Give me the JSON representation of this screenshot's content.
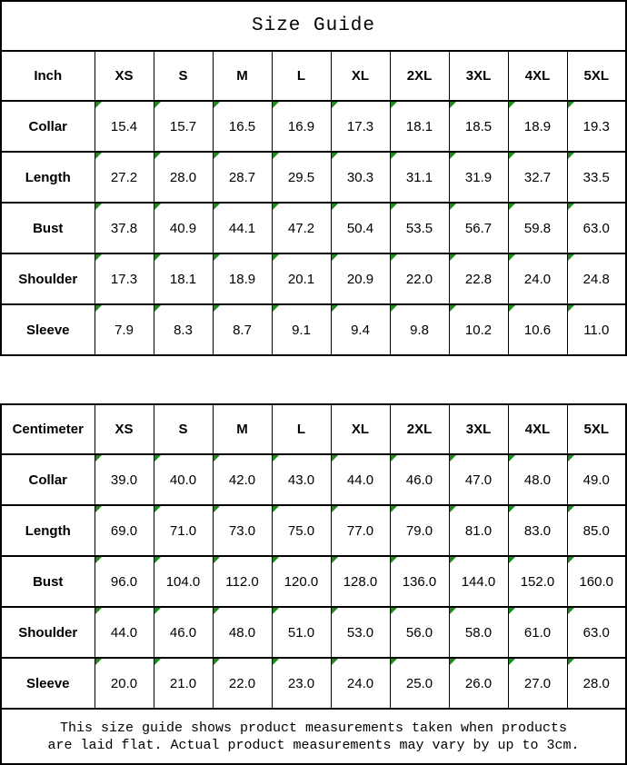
{
  "title": "Size Guide",
  "colors": {
    "flag_green": "#1f8b1f",
    "border": "#000000",
    "background": "#ffffff"
  },
  "inch_table": {
    "unit_label": "Inch",
    "sizes": [
      "XS",
      "S",
      "M",
      "L",
      "XL",
      "2XL",
      "3XL",
      "4XL",
      "5XL"
    ],
    "rows": [
      {
        "label": "Collar",
        "values": [
          "15.4",
          "15.7",
          "16.5",
          "16.9",
          "17.3",
          "18.1",
          "18.5",
          "18.9",
          "19.3"
        ]
      },
      {
        "label": "Length",
        "values": [
          "27.2",
          "28.0",
          "28.7",
          "29.5",
          "30.3",
          "31.1",
          "31.9",
          "32.7",
          "33.5"
        ]
      },
      {
        "label": "Bust",
        "values": [
          "37.8",
          "40.9",
          "44.1",
          "47.2",
          "50.4",
          "53.5",
          "56.7",
          "59.8",
          "63.0"
        ]
      },
      {
        "label": "Shoulder",
        "values": [
          "17.3",
          "18.1",
          "18.9",
          "20.1",
          "20.9",
          "22.0",
          "22.8",
          "24.0",
          "24.8"
        ]
      },
      {
        "label": "Sleeve",
        "values": [
          "7.9",
          "8.3",
          "8.7",
          "9.1",
          "9.4",
          "9.8",
          "10.2",
          "10.6",
          "11.0"
        ]
      }
    ]
  },
  "cm_table": {
    "unit_label": "Centimeter",
    "sizes": [
      "XS",
      "S",
      "M",
      "L",
      "XL",
      "2XL",
      "3XL",
      "4XL",
      "5XL"
    ],
    "rows": [
      {
        "label": "Collar",
        "values": [
          "39.0",
          "40.0",
          "42.0",
          "43.0",
          "44.0",
          "46.0",
          "47.0",
          "48.0",
          "49.0"
        ]
      },
      {
        "label": "Length",
        "values": [
          "69.0",
          "71.0",
          "73.0",
          "75.0",
          "77.0",
          "79.0",
          "81.0",
          "83.0",
          "85.0"
        ]
      },
      {
        "label": "Bust",
        "values": [
          "96.0",
          "104.0",
          "112.0",
          "120.0",
          "128.0",
          "136.0",
          "144.0",
          "152.0",
          "160.0"
        ]
      },
      {
        "label": "Shoulder",
        "values": [
          "44.0",
          "46.0",
          "48.0",
          "51.0",
          "53.0",
          "56.0",
          "58.0",
          "61.0",
          "63.0"
        ]
      },
      {
        "label": "Sleeve",
        "values": [
          "20.0",
          "21.0",
          "22.0",
          "23.0",
          "24.0",
          "25.0",
          "26.0",
          "27.0",
          "28.0"
        ]
      }
    ]
  },
  "footer": {
    "line1": "This size guide shows product measurements taken when products",
    "line2": "are laid flat. Actual product measurements may vary by up to 3cm."
  }
}
